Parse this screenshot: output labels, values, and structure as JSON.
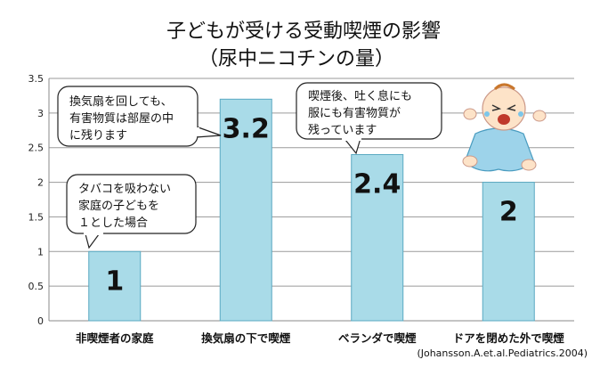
{
  "chart_data": {
    "type": "bar",
    "title": "子どもが受ける受動喫煙の影響",
    "subtitle": "（尿中ニコチンの量）",
    "categories": [
      "非喫煙者の家庭",
      "換気扇の下で喫煙",
      "ベランダで喫煙",
      "ドアを閉めた外で喫煙"
    ],
    "values": [
      1,
      3.2,
      2.4,
      2
    ],
    "data_labels": [
      "1",
      "3.2",
      "2.4",
      "2"
    ],
    "ylim": [
      0,
      3.5
    ],
    "yticks": [
      "0",
      "0.5",
      "1",
      "1.5",
      "2",
      "2.5",
      "3",
      "3.5"
    ],
    "xlabel": "",
    "ylabel": "",
    "grid": true,
    "bar_color": "#a9dbe8",
    "bar_edge_color": "#5aa9c2",
    "annotations": [
      {
        "lines": [
          "タバコを吸わない",
          "家庭の子どもを",
          "１とした場合"
        ],
        "points_to": "非喫煙者の家庭"
      },
      {
        "lines": [
          "換気扇を回しても、",
          "有害物質は部屋の中",
          "に残ります"
        ],
        "points_to": "換気扇の下で喫煙"
      },
      {
        "lines": [
          "喫煙後、吐く息にも",
          "服にも有害物質が",
          "残っています"
        ],
        "points_to": "ベランダで喫煙"
      }
    ],
    "source": "(Johansson.A.et.al.Pediatrics.2004)"
  },
  "illustration": {
    "icon": "crying-baby-icon"
  }
}
